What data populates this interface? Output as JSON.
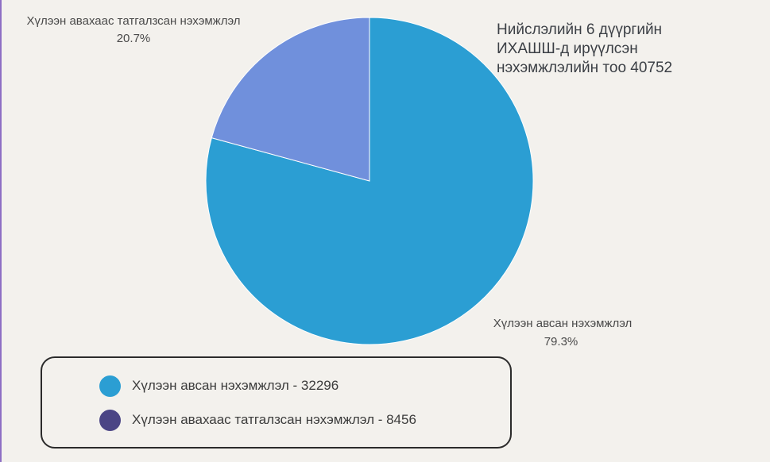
{
  "chart_data": {
    "type": "pie",
    "title": "Нийслэлийн 6 дүүргийн\nИХАШШ-д ирүүлсэн\nнэхэмжлэлийн тоо 40752",
    "slices": [
      {
        "name": "Хүлээн авсан нэхэмжлэл",
        "value": 32296,
        "percent_label": "79.3%",
        "legend_text": "Хүлээн авсан нэхэмжлэл - 32296",
        "color": "#2b9ed3",
        "legend_color": "#2b9ed3"
      },
      {
        "name": "Хүлээн авахаас татгалзсан нэхэмжлэл",
        "value": 8456,
        "percent_label": "20.7%",
        "legend_text": "Хүлээн авахаас татгалзсан нэхэмжлэл - 8456",
        "color": "#7090dc",
        "legend_color": "#4b4585"
      }
    ],
    "legend_position": "bottom-left",
    "start_angle": "12 o'clock",
    "direction": "clockwise"
  }
}
